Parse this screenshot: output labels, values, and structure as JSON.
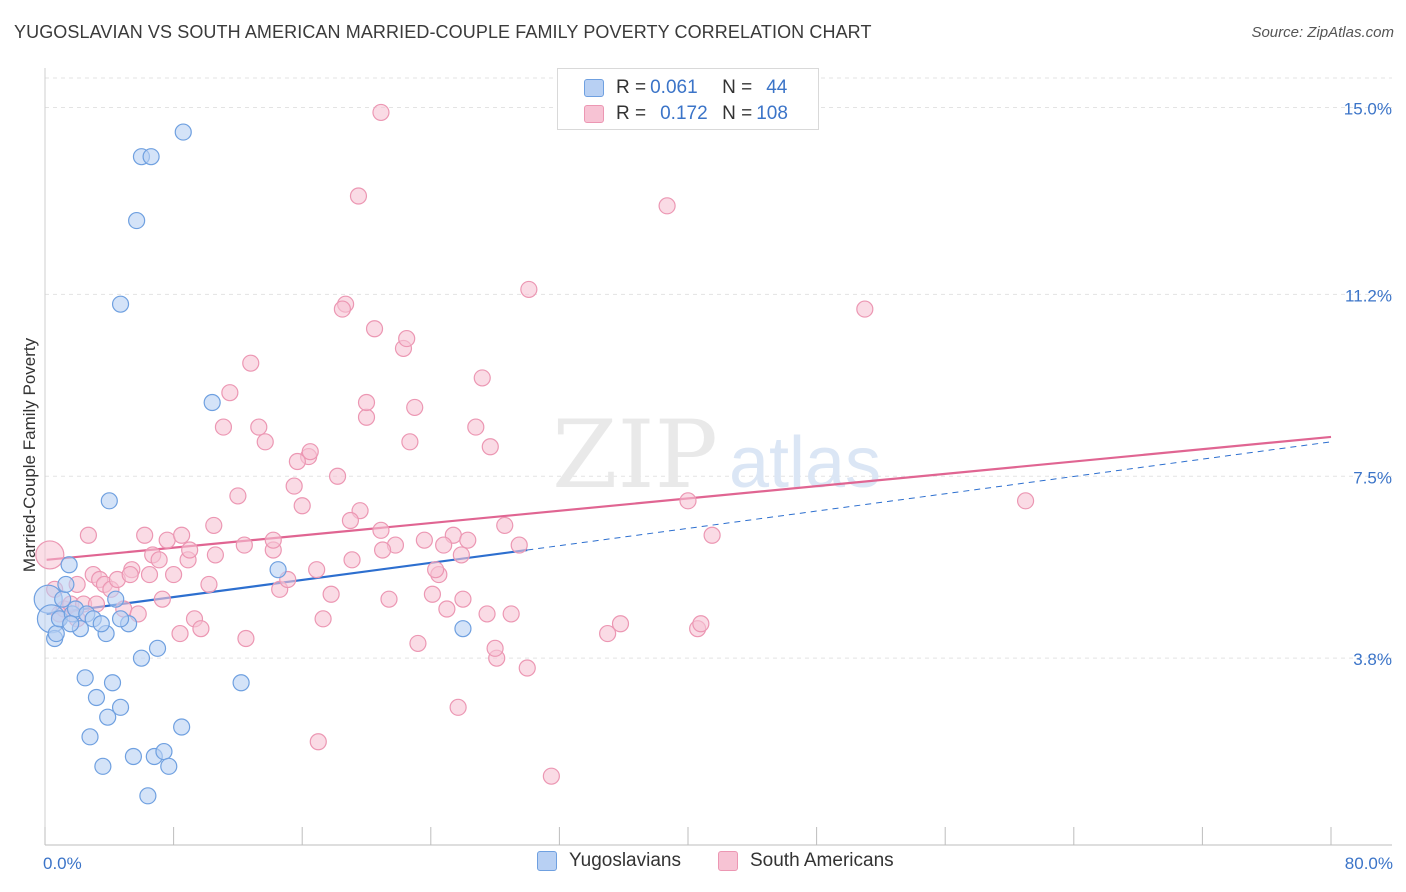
{
  "header": {
    "title": "YUGOSLAVIAN VS SOUTH AMERICAN MARRIED-COUPLE FAMILY POVERTY CORRELATION CHART",
    "source": "Source: ZipAtlas.com"
  },
  "watermark": {
    "zip": "ZIP",
    "atlas": "atlas"
  },
  "legend": {
    "rows": [
      {
        "r_label": "R = ",
        "r_value": "0.061",
        "n_label": "N = ",
        "n_value": "44"
      },
      {
        "r_label": "R = ",
        "r_value": "0.172",
        "n_label": "N = ",
        "n_value": "108"
      }
    ]
  },
  "colors": {
    "blue_fill": "#b8d0f3",
    "blue_stroke": "#6fa0e0",
    "blue_line": "#2d6fcf",
    "pink_fill": "#f7c3d4",
    "pink_stroke": "#ec97b3",
    "pink_line": "#e06592",
    "axis_label": "#3b74c8",
    "grid": "#e3e3e3"
  },
  "chart_data": {
    "type": "scatter",
    "title": "YUGOSLAVIAN VS SOUTH AMERICAN MARRIED-COUPLE FAMILY POVERTY CORRELATION CHART",
    "xlabel": "",
    "ylabel": "Married-Couple Family Poverty",
    "xlim": [
      0,
      80
    ],
    "ylim": [
      0,
      15.6
    ],
    "x_tick_labels": [
      "0.0%",
      "80.0%"
    ],
    "y_ticks": [
      3.8,
      7.5,
      11.2,
      15.0
    ],
    "y_tick_labels": [
      "3.8%",
      "7.5%",
      "11.2%",
      "15.0%"
    ],
    "grid": true,
    "legend_position": "bottom",
    "series": [
      {
        "name": "Yugoslavians",
        "color": "blue",
        "trend": {
          "x1": 0.1,
          "y1": 4.7,
          "x2": 30.0,
          "y2": 6.0,
          "dashed_to_x": 80.0,
          "dashed_to_y": 8.2
        },
        "points": [
          [
            0.2,
            5.0
          ],
          [
            0.4,
            4.6
          ],
          [
            0.6,
            4.2
          ],
          [
            0.7,
            4.3
          ],
          [
            0.9,
            4.6
          ],
          [
            1.1,
            5.0
          ],
          [
            1.3,
            5.3
          ],
          [
            1.5,
            5.7
          ],
          [
            1.7,
            4.7
          ],
          [
            1.9,
            4.8
          ],
          [
            2.2,
            4.4
          ],
          [
            2.6,
            4.7
          ],
          [
            3.0,
            4.6
          ],
          [
            2.5,
            3.4
          ],
          [
            3.2,
            3.0
          ],
          [
            3.9,
            2.6
          ],
          [
            2.8,
            2.2
          ],
          [
            4.2,
            3.3
          ],
          [
            4.7,
            2.8
          ],
          [
            5.2,
            4.5
          ],
          [
            6.0,
            3.8
          ],
          [
            7.0,
            4.0
          ],
          [
            3.6,
            1.6
          ],
          [
            5.5,
            1.8
          ],
          [
            6.8,
            1.8
          ],
          [
            7.4,
            1.9
          ],
          [
            7.7,
            1.6
          ],
          [
            8.5,
            2.4
          ],
          [
            6.4,
            1.0
          ],
          [
            3.8,
            4.3
          ],
          [
            4.4,
            5.0
          ],
          [
            6.0,
            14.0
          ],
          [
            6.6,
            14.0
          ],
          [
            8.6,
            14.5
          ],
          [
            5.7,
            12.7
          ],
          [
            4.7,
            11.0
          ],
          [
            10.4,
            9.0
          ],
          [
            4.0,
            7.0
          ],
          [
            12.2,
            3.3
          ],
          [
            14.5,
            5.6
          ],
          [
            26.0,
            4.4
          ],
          [
            4.7,
            4.6
          ],
          [
            1.6,
            4.5
          ],
          [
            3.5,
            4.5
          ]
        ]
      },
      {
        "name": "South Americans",
        "color": "pink",
        "trend": {
          "x1": 0.1,
          "y1": 5.8,
          "x2": 80.0,
          "y2": 8.3
        },
        "points": [
          [
            0.3,
            5.9
          ],
          [
            0.6,
            5.2
          ],
          [
            0.9,
            4.7
          ],
          [
            1.2,
            4.8
          ],
          [
            1.6,
            4.9
          ],
          [
            2.0,
            5.3
          ],
          [
            2.4,
            4.9
          ],
          [
            2.7,
            6.3
          ],
          [
            3.0,
            5.5
          ],
          [
            3.4,
            5.4
          ],
          [
            3.7,
            5.3
          ],
          [
            4.1,
            5.2
          ],
          [
            4.5,
            5.4
          ],
          [
            4.9,
            4.8
          ],
          [
            5.4,
            5.6
          ],
          [
            5.8,
            4.7
          ],
          [
            6.2,
            6.3
          ],
          [
            6.7,
            5.9
          ],
          [
            7.1,
            5.8
          ],
          [
            7.6,
            6.2
          ],
          [
            8.0,
            5.5
          ],
          [
            8.4,
            4.3
          ],
          [
            8.9,
            5.8
          ],
          [
            9.3,
            4.6
          ],
          [
            9.7,
            4.4
          ],
          [
            10.2,
            5.3
          ],
          [
            10.6,
            5.9
          ],
          [
            11.1,
            8.5
          ],
          [
            11.5,
            9.2
          ],
          [
            12.0,
            7.1
          ],
          [
            12.4,
            6.1
          ],
          [
            12.8,
            9.8
          ],
          [
            13.3,
            8.5
          ],
          [
            13.7,
            8.2
          ],
          [
            14.2,
            6.0
          ],
          [
            14.6,
            5.2
          ],
          [
            15.1,
            5.4
          ],
          [
            15.5,
            7.3
          ],
          [
            16.0,
            6.9
          ],
          [
            16.4,
            7.9
          ],
          [
            16.9,
            5.6
          ],
          [
            17.3,
            4.6
          ],
          [
            17.8,
            5.1
          ],
          [
            18.2,
            7.5
          ],
          [
            18.7,
            11.0
          ],
          [
            19.1,
            5.8
          ],
          [
            19.6,
            6.8
          ],
          [
            20.0,
            8.7
          ],
          [
            20.5,
            10.5
          ],
          [
            20.9,
            6.4
          ],
          [
            21.4,
            5.0
          ],
          [
            21.8,
            6.1
          ],
          [
            22.3,
            10.1
          ],
          [
            22.7,
            8.2
          ],
          [
            23.2,
            4.1
          ],
          [
            23.6,
            6.2
          ],
          [
            24.1,
            5.1
          ],
          [
            24.5,
            5.5
          ],
          [
            25.0,
            4.8
          ],
          [
            25.4,
            6.3
          ],
          [
            25.9,
            5.9
          ],
          [
            26.3,
            6.2
          ],
          [
            26.8,
            8.5
          ],
          [
            27.2,
            9.5
          ],
          [
            27.7,
            8.1
          ],
          [
            28.1,
            3.8
          ],
          [
            28.6,
            6.5
          ],
          [
            29.0,
            4.7
          ],
          [
            29.5,
            6.1
          ],
          [
            30.0,
            3.6
          ],
          [
            10.5,
            6.5
          ],
          [
            14.2,
            6.2
          ],
          [
            8.5,
            6.3
          ],
          [
            6.5,
            5.5
          ],
          [
            24.3,
            5.6
          ],
          [
            21.0,
            6.0
          ],
          [
            9.0,
            6.0
          ],
          [
            16.5,
            8.0
          ],
          [
            12.5,
            4.2
          ],
          [
            20.0,
            9.0
          ],
          [
            22.5,
            10.3
          ],
          [
            25.7,
            2.8
          ],
          [
            17.0,
            2.1
          ],
          [
            31.5,
            1.4
          ],
          [
            28.0,
            4.0
          ],
          [
            35.0,
            4.3
          ],
          [
            40.0,
            7.0
          ],
          [
            41.5,
            6.3
          ],
          [
            35.8,
            4.5
          ],
          [
            40.6,
            4.4
          ],
          [
            40.8,
            4.5
          ],
          [
            51.0,
            10.9
          ],
          [
            61.0,
            7.0
          ],
          [
            19.5,
            13.2
          ],
          [
            20.9,
            14.9
          ],
          [
            38.7,
            13.0
          ],
          [
            30.1,
            11.3
          ],
          [
            23.0,
            8.9
          ],
          [
            18.5,
            10.9
          ],
          [
            26.0,
            5.0
          ],
          [
            27.5,
            4.7
          ],
          [
            24.8,
            6.1
          ],
          [
            19.0,
            6.6
          ],
          [
            15.7,
            7.8
          ],
          [
            7.3,
            5.0
          ],
          [
            5.3,
            5.5
          ],
          [
            3.2,
            4.9
          ],
          [
            2.0,
            4.6
          ]
        ]
      }
    ]
  },
  "bottom_legend": {
    "items": [
      {
        "label": "Yugoslavians"
      },
      {
        "label": "South Americans"
      }
    ]
  }
}
